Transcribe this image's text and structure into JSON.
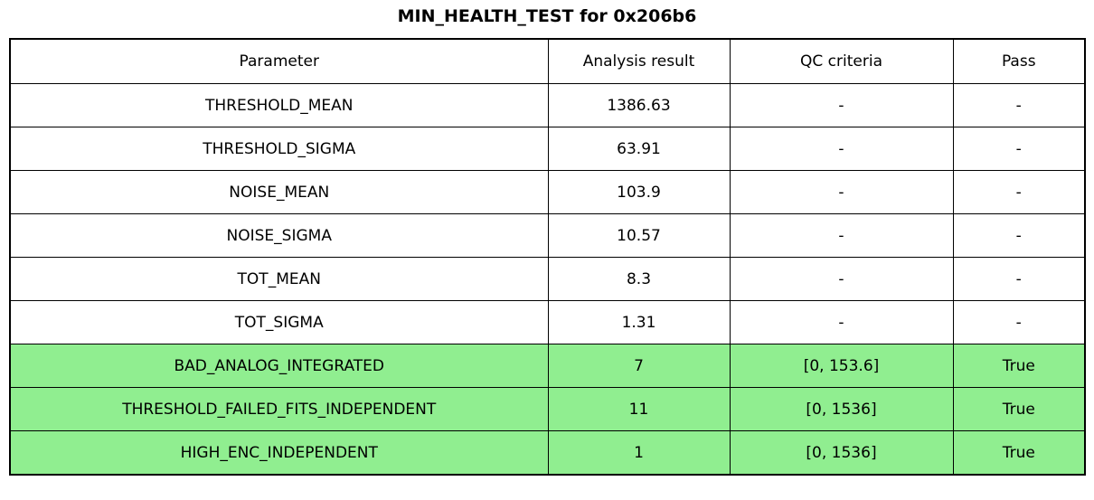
{
  "title": "MIN_HEALTH_TEST for 0x206b6",
  "colors": {
    "pass_highlight": "#90EE90",
    "border": "#000000",
    "background": "#ffffff",
    "text": "#000000"
  },
  "chart_data": {
    "type": "table",
    "title": "MIN_HEALTH_TEST for 0x206b6",
    "columns": [
      "Parameter",
      "Analysis result",
      "QC criteria",
      "Pass"
    ],
    "rows": [
      [
        "THRESHOLD_MEAN",
        "1386.63",
        "-",
        "-"
      ],
      [
        "THRESHOLD_SIGMA",
        "63.91",
        "-",
        "-"
      ],
      [
        "NOISE_MEAN",
        "103.9",
        "-",
        "-"
      ],
      [
        "NOISE_SIGMA",
        "10.57",
        "-",
        "-"
      ],
      [
        "TOT_MEAN",
        "8.3",
        "-",
        "-"
      ],
      [
        "TOT_SIGMA",
        "1.31",
        "-",
        "-"
      ],
      [
        "BAD_ANALOG_INTEGRATED",
        "7",
        "[0, 153.6]",
        "True"
      ],
      [
        "THRESHOLD_FAILED_FITS_INDEPENDENT",
        "11",
        "[0, 1536]",
        "True"
      ],
      [
        "HIGH_ENC_INDEPENDENT",
        "1",
        "[0, 1536]",
        "True"
      ]
    ],
    "highlighted_rows": [
      6,
      7,
      8
    ],
    "highlight_color": "#90EE90",
    "legend_position": "none",
    "grid": "full-cell-borders"
  }
}
